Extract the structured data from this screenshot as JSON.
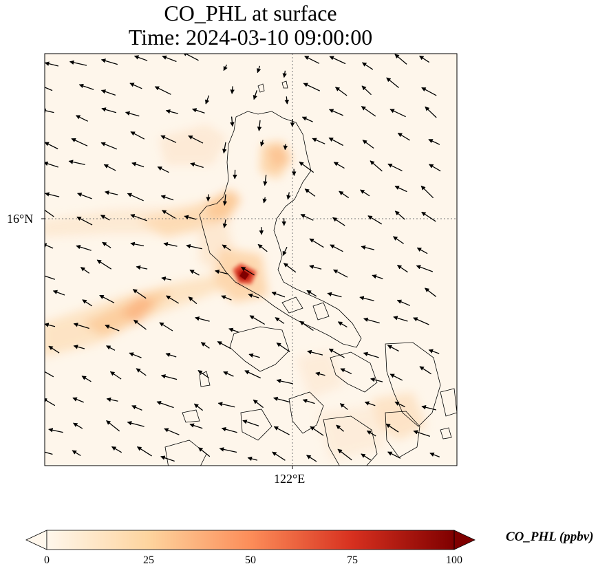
{
  "title": {
    "line1": "CO_PHL at surface",
    "line2": "Time: 2024-03-10 09:00:00"
  },
  "axes": {
    "lat_tick_label": "16°N",
    "lon_tick_label": "122°E",
    "gridline_style": "dotted grey"
  },
  "colorbar": {
    "label": "CO_PHL (ppbv)",
    "ticks": [
      "0",
      "25",
      "50",
      "75",
      "100"
    ],
    "min": 0,
    "max": 100,
    "extend": "both",
    "colormap": "OrRd",
    "colors": [
      "#fff7ec",
      "#fdd49e",
      "#fc8d59",
      "#d7301f",
      "#7f0000"
    ]
  },
  "map": {
    "region": "Northern Philippines (Luzon) and surrounding seas",
    "overlay": "wind vectors (black arrows)",
    "peak_location": "near Manila Bay, central Luzon",
    "peak_value_approx": 95
  }
}
